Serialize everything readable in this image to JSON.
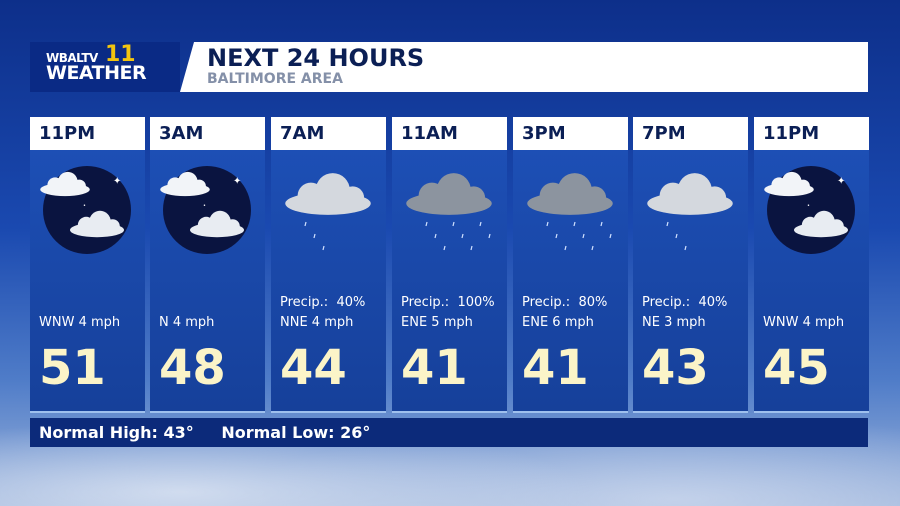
{
  "logo": {
    "line1": "WBALTV",
    "channel": "11",
    "line2": "WEATHER"
  },
  "header": {
    "title": "NEXT 24 HOURS",
    "subtitle": "BALTIMORE AREA"
  },
  "forecast": [
    {
      "time": "11PM",
      "icon": "partly-cloudy-night-icon",
      "precip": "",
      "wind": "WNW 4 mph",
      "temp": "51"
    },
    {
      "time": "3AM",
      "icon": "partly-cloudy-night-icon",
      "precip": "",
      "wind": "N 4 mph",
      "temp": "48"
    },
    {
      "time": "7AM",
      "icon": "cloudy-light-rain-icon",
      "precip": "Precip.:  40%",
      "wind": "NNE 4 mph",
      "temp": "44"
    },
    {
      "time": "11AM",
      "icon": "cloudy-rain-icon",
      "precip": "Precip.:  100%",
      "wind": "ENE 5 mph",
      "temp": "41"
    },
    {
      "time": "3PM",
      "icon": "cloudy-rain-icon",
      "precip": "Precip.:  80%",
      "wind": "ENE 6 mph",
      "temp": "41"
    },
    {
      "time": "7PM",
      "icon": "cloudy-light-rain-icon",
      "precip": "Precip.:  40%",
      "wind": "NE 3 mph",
      "temp": "43"
    },
    {
      "time": "11PM",
      "icon": "partly-cloudy-night-icon",
      "precip": "",
      "wind": "WNW 4 mph",
      "temp": "45"
    }
  ],
  "footer": {
    "normal_high": "Normal High: 43°",
    "normal_low": "Normal Low: 26°"
  }
}
